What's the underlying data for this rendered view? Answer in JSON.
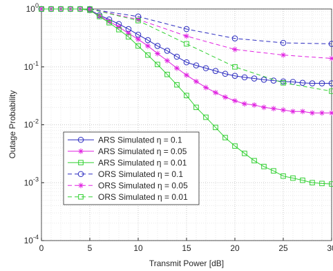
{
  "chart_data": {
    "type": "line",
    "xlabel": "Transmit Power [dB]",
    "ylabel": "Outage Probability",
    "xlim": [
      0,
      30
    ],
    "xticks": [
      0,
      5,
      10,
      15,
      20,
      25,
      30
    ],
    "ylim": [
      0.0001,
      1
    ],
    "log_y": true,
    "grid": true,
    "minor_grid": true,
    "legend": "lower left",
    "yticks": [
      {
        "value": 0.0001,
        "label": "10^-4"
      },
      {
        "value": 0.001,
        "label": "10^-3"
      },
      {
        "value": 0.01,
        "label": "10^-2"
      },
      {
        "value": 0.1,
        "label": "10^-1"
      },
      {
        "value": 1,
        "label": "10^0"
      }
    ],
    "series": [
      {
        "name": "ARS Simulated η = 0.1",
        "color": "#2b2bc0",
        "dash": "solid",
        "marker": "circle",
        "x": [
          0,
          1,
          2,
          3,
          4,
          5,
          6,
          7,
          8,
          9,
          10,
          11,
          12,
          13,
          14,
          15,
          16,
          17,
          18,
          19,
          20,
          21,
          22,
          23,
          24,
          25,
          26,
          27,
          28,
          29,
          30
        ],
        "values": [
          1,
          1,
          1,
          1,
          1,
          0.97,
          0.78,
          0.66,
          0.55,
          0.45,
          0.36,
          0.29,
          0.23,
          0.19,
          0.15,
          0.12,
          0.106,
          0.095,
          0.085,
          0.076,
          0.07,
          0.066,
          0.063,
          0.06,
          0.058,
          0.056,
          0.055,
          0.053,
          0.052,
          0.052,
          0.052
        ]
      },
      {
        "name": "ARS Simulated η = 0.05",
        "color": "#e020e0",
        "dash": "solid",
        "marker": "star",
        "x": [
          0,
          1,
          2,
          3,
          4,
          5,
          6,
          7,
          8,
          9,
          10,
          11,
          12,
          13,
          14,
          15,
          16,
          17,
          18,
          19,
          20,
          21,
          22,
          23,
          24,
          25,
          26,
          27,
          28,
          29,
          30
        ],
        "values": [
          1,
          1,
          1,
          1,
          1,
          0.95,
          0.76,
          0.61,
          0.49,
          0.38,
          0.3,
          0.23,
          0.17,
          0.128,
          0.095,
          0.072,
          0.056,
          0.044,
          0.036,
          0.03,
          0.026,
          0.023,
          0.022,
          0.02,
          0.019,
          0.018,
          0.017,
          0.017,
          0.016,
          0.016,
          0.016
        ]
      },
      {
        "name": "ARS Simulated η = 0.01",
        "color": "#30d030",
        "dash": "solid",
        "marker": "square",
        "x": [
          0,
          1,
          2,
          3,
          4,
          5,
          6,
          7,
          8,
          9,
          10,
          11,
          12,
          13,
          14,
          15,
          16,
          17,
          18,
          19,
          20,
          21,
          22,
          23,
          24,
          25,
          26,
          27,
          28,
          29,
          30
        ],
        "values": [
          1,
          1,
          1,
          1,
          1,
          0.95,
          0.74,
          0.58,
          0.44,
          0.33,
          0.23,
          0.16,
          0.11,
          0.074,
          0.049,
          0.032,
          0.02,
          0.0135,
          0.009,
          0.006,
          0.0043,
          0.0032,
          0.0024,
          0.0019,
          0.0016,
          0.0013,
          0.0012,
          0.0011,
          0.001,
          0.00097,
          0.00095
        ]
      },
      {
        "name": "ORS Simulated η = 0.1",
        "color": "#2b2bc0",
        "dash": "dashed",
        "marker": "circle",
        "x": [
          0,
          5,
          10,
          15,
          20,
          25,
          30
        ],
        "values": [
          1,
          1,
          0.74,
          0.45,
          0.31,
          0.26,
          0.25
        ]
      },
      {
        "name": "ORS Simulated η = 0.05",
        "color": "#e020e0",
        "dash": "dashed",
        "marker": "star",
        "x": [
          0,
          5,
          10,
          15,
          20,
          25,
          30
        ],
        "values": [
          1,
          1,
          0.66,
          0.34,
          0.2,
          0.16,
          0.14
        ]
      },
      {
        "name": "ORS Simulated η = 0.01",
        "color": "#30d030",
        "dash": "dashed",
        "marker": "square",
        "x": [
          0,
          5,
          10,
          15,
          20,
          25,
          30
        ],
        "values": [
          1,
          1,
          0.63,
          0.25,
          0.1,
          0.053,
          0.038
        ]
      }
    ]
  }
}
